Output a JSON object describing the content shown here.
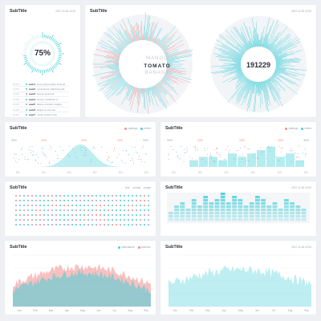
{
  "colors": {
    "teal": "#46cfd8",
    "salmon": "#f28e8e",
    "bg": "#eef0f3",
    "card": "#ffffff"
  },
  "cards": {
    "gauge": {
      "title": "SubTitle",
      "date": "2017.12.30 12:00",
      "percent": 75,
      "percent_label": "75%"
    },
    "word_radial": {
      "title": "SubTitle",
      "date": "2017.12.30 12:00",
      "words": [
        "MANGO",
        "TOMATO",
        "BANANA"
      ]
    },
    "number_radial": {
      "value": "191229"
    },
    "dist1": {
      "title": "SubTitle",
      "legend": [
        "catalogs",
        "others"
      ],
      "y_labels": [
        "30%",
        "30%"
      ],
      "markers": [
        "10%",
        "10%",
        "10%"
      ],
      "x_labels": [
        "0.0",
        "0.0",
        "0.0",
        "0.0",
        "0.0",
        "0.0"
      ]
    },
    "dist2": {
      "title": "SubTitle",
      "legend": [
        "catalogs",
        "others"
      ],
      "y_labels": [
        "30%",
        "30%"
      ],
      "markers": [
        "10%",
        "10%",
        "10%"
      ],
      "x_labels": [
        "0.0",
        "0.0",
        "0.0",
        "0.0",
        "0.0",
        "0.0"
      ],
      "bar_values": [
        2,
        3,
        3,
        2,
        4,
        3,
        4,
        5,
        6,
        3,
        4,
        2
      ]
    },
    "dots": {
      "title": "SubTitle",
      "legend": [
        "teal",
        "normal",
        "purple"
      ]
    },
    "bars": {
      "title": "SubTitle",
      "date": "2017.12.30 12:00",
      "bar_values": [
        3,
        5,
        6,
        4,
        7,
        5,
        8,
        6,
        7,
        9,
        6,
        8,
        7,
        5,
        6,
        8,
        7,
        5,
        6,
        4,
        7,
        6,
        5,
        4
      ]
    },
    "area1": {
      "title": "SubTitle",
      "legend": [
        "Attendance",
        "Absence"
      ],
      "x_labels": [
        "Jan",
        "Feb",
        "Mar",
        "Apr",
        "May",
        "Jun",
        "Jul",
        "Aug",
        "Sep"
      ]
    },
    "area2": {
      "title": "SubTitle",
      "date": "2017.12.30 12:00",
      "x_labels": [
        "Jan",
        "Feb",
        "Mar",
        "Apr",
        "May",
        "Jun",
        "Jul",
        "Aug",
        "Sep"
      ]
    }
  },
  "list_items": [
    {
      "time": "12:00",
      "user": "user1",
      "text": "lorem ipsum dolor sit amet",
      "color": "#46cfd8"
    },
    {
      "time": "12:00",
      "user": "user2",
      "text": "consectetur adipiscing elit",
      "color": "#46cfd8"
    },
    {
      "time": "12:00",
      "user": "user3",
      "text": "sed do eiusmod",
      "color": "#f28e8e"
    },
    {
      "time": "12:00",
      "user": "user4",
      "text": "tempor incididunt ut",
      "color": "#46cfd8"
    },
    {
      "time": "12:00",
      "user": "user5",
      "text": "labore et dolore magna",
      "color": "#f28e8e"
    },
    {
      "time": "12:00",
      "user": "user6",
      "text": "aliqua ut enim ad",
      "color": "#46cfd8"
    },
    {
      "time": "12:00",
      "user": "user7",
      "text": "minim veniam quis",
      "color": "#46cfd8"
    }
  ]
}
